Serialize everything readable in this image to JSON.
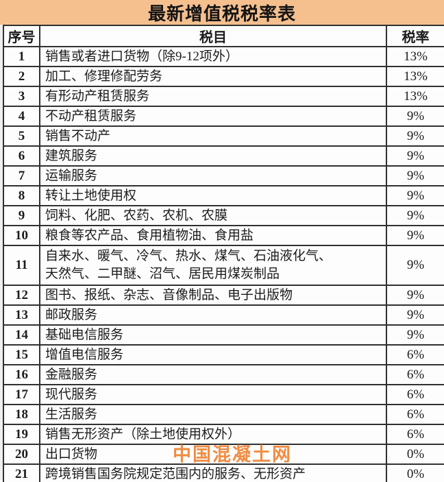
{
  "title": "最新增值税税率表",
  "watermark": "中国混凝土网",
  "colors": {
    "title_bg": "#F5BF8E",
    "watermark_orange": "#F08C42",
    "border": "#303030",
    "text": "#1B1B1B"
  },
  "table": {
    "headers": [
      "序号",
      "税目",
      "税率"
    ],
    "rows": [
      {
        "no": "1",
        "item": "销售或者进口货物（除9-12项外）",
        "rate": "13%",
        "tall": false
      },
      {
        "no": "2",
        "item": "加工、修理修配劳务",
        "rate": "13%",
        "tall": false
      },
      {
        "no": "3",
        "item": "有形动产租赁服务",
        "rate": "13%",
        "tall": false
      },
      {
        "no": "4",
        "item": "不动产租赁服务",
        "rate": "9%",
        "tall": false
      },
      {
        "no": "5",
        "item": "销售不动产",
        "rate": "9%",
        "tall": false
      },
      {
        "no": "6",
        "item": "建筑服务",
        "rate": "9%",
        "tall": false
      },
      {
        "no": "7",
        "item": "运输服务",
        "rate": "9%",
        "tall": false
      },
      {
        "no": "8",
        "item": "转让土地使用权",
        "rate": "9%",
        "tall": false
      },
      {
        "no": "9",
        "item": "饲料、化肥、农药、农机、农膜",
        "rate": "9%",
        "tall": false
      },
      {
        "no": "10",
        "item": "粮食等农产品、食用植物油、食用盐",
        "rate": "9%",
        "tall": false
      },
      {
        "no": "11",
        "item": "自来水、暖气、冷气、热水、煤气、石油液化气、\n天然气、二甲醚、沼气、居民用煤炭制品",
        "rate": "9%",
        "tall": true
      },
      {
        "no": "12",
        "item": "图书、报纸、杂志、音像制品、电子出版物",
        "rate": "9%",
        "tall": false
      },
      {
        "no": "13",
        "item": "邮政服务",
        "rate": "9%",
        "tall": false
      },
      {
        "no": "14",
        "item": "基础电信服务",
        "rate": "9%",
        "tall": false
      },
      {
        "no": "15",
        "item": "增值电信服务",
        "rate": "6%",
        "tall": false
      },
      {
        "no": "16",
        "item": "金融服务",
        "rate": "6%",
        "tall": false
      },
      {
        "no": "17",
        "item": "现代服务",
        "rate": "6%",
        "tall": false
      },
      {
        "no": "18",
        "item": "生活服务",
        "rate": "6%",
        "tall": false
      },
      {
        "no": "19",
        "item": "销售无形资产（除土地使用权外）",
        "rate": "6%",
        "tall": false
      },
      {
        "no": "20",
        "item": "出口货物",
        "rate": "0%",
        "tall": false
      },
      {
        "no": "21",
        "item": "跨境销售国务院规定范围内的服务、无形资产",
        "rate": "0%",
        "tall": false
      }
    ]
  },
  "chart_data": {
    "type": "table",
    "title": "最新增值税税率表",
    "columns": [
      "序号",
      "税目",
      "税率"
    ],
    "rows": [
      [
        "1",
        "销售或者进口货物（除9-12项外）",
        "13%"
      ],
      [
        "2",
        "加工、修理修配劳务",
        "13%"
      ],
      [
        "3",
        "有形动产租赁服务",
        "13%"
      ],
      [
        "4",
        "不动产租赁服务",
        "9%"
      ],
      [
        "5",
        "销售不动产",
        "9%"
      ],
      [
        "6",
        "建筑服务",
        "9%"
      ],
      [
        "7",
        "运输服务",
        "9%"
      ],
      [
        "8",
        "转让土地使用权",
        "9%"
      ],
      [
        "9",
        "饲料、化肥、农药、农机、农膜",
        "9%"
      ],
      [
        "10",
        "粮食等农产品、食用植物油、食用盐",
        "9%"
      ],
      [
        "11",
        "自来水、暖气、冷气、热水、煤气、石油液化气、天然气、二甲醚、沼气、居民用煤炭制品",
        "9%"
      ],
      [
        "12",
        "图书、报纸、杂志、音像制品、电子出版物",
        "9%"
      ],
      [
        "13",
        "邮政服务",
        "9%"
      ],
      [
        "14",
        "基础电信服务",
        "9%"
      ],
      [
        "15",
        "增值电信服务",
        "6%"
      ],
      [
        "16",
        "金融服务",
        "6%"
      ],
      [
        "17",
        "现代服务",
        "6%"
      ],
      [
        "18",
        "生活服务",
        "6%"
      ],
      [
        "19",
        "销售无形资产（除土地使用权外）",
        "6%"
      ],
      [
        "20",
        "出口货物",
        "0%"
      ],
      [
        "21",
        "跨境销售国务院规定范围内的服务、无形资产",
        "0%"
      ]
    ]
  }
}
